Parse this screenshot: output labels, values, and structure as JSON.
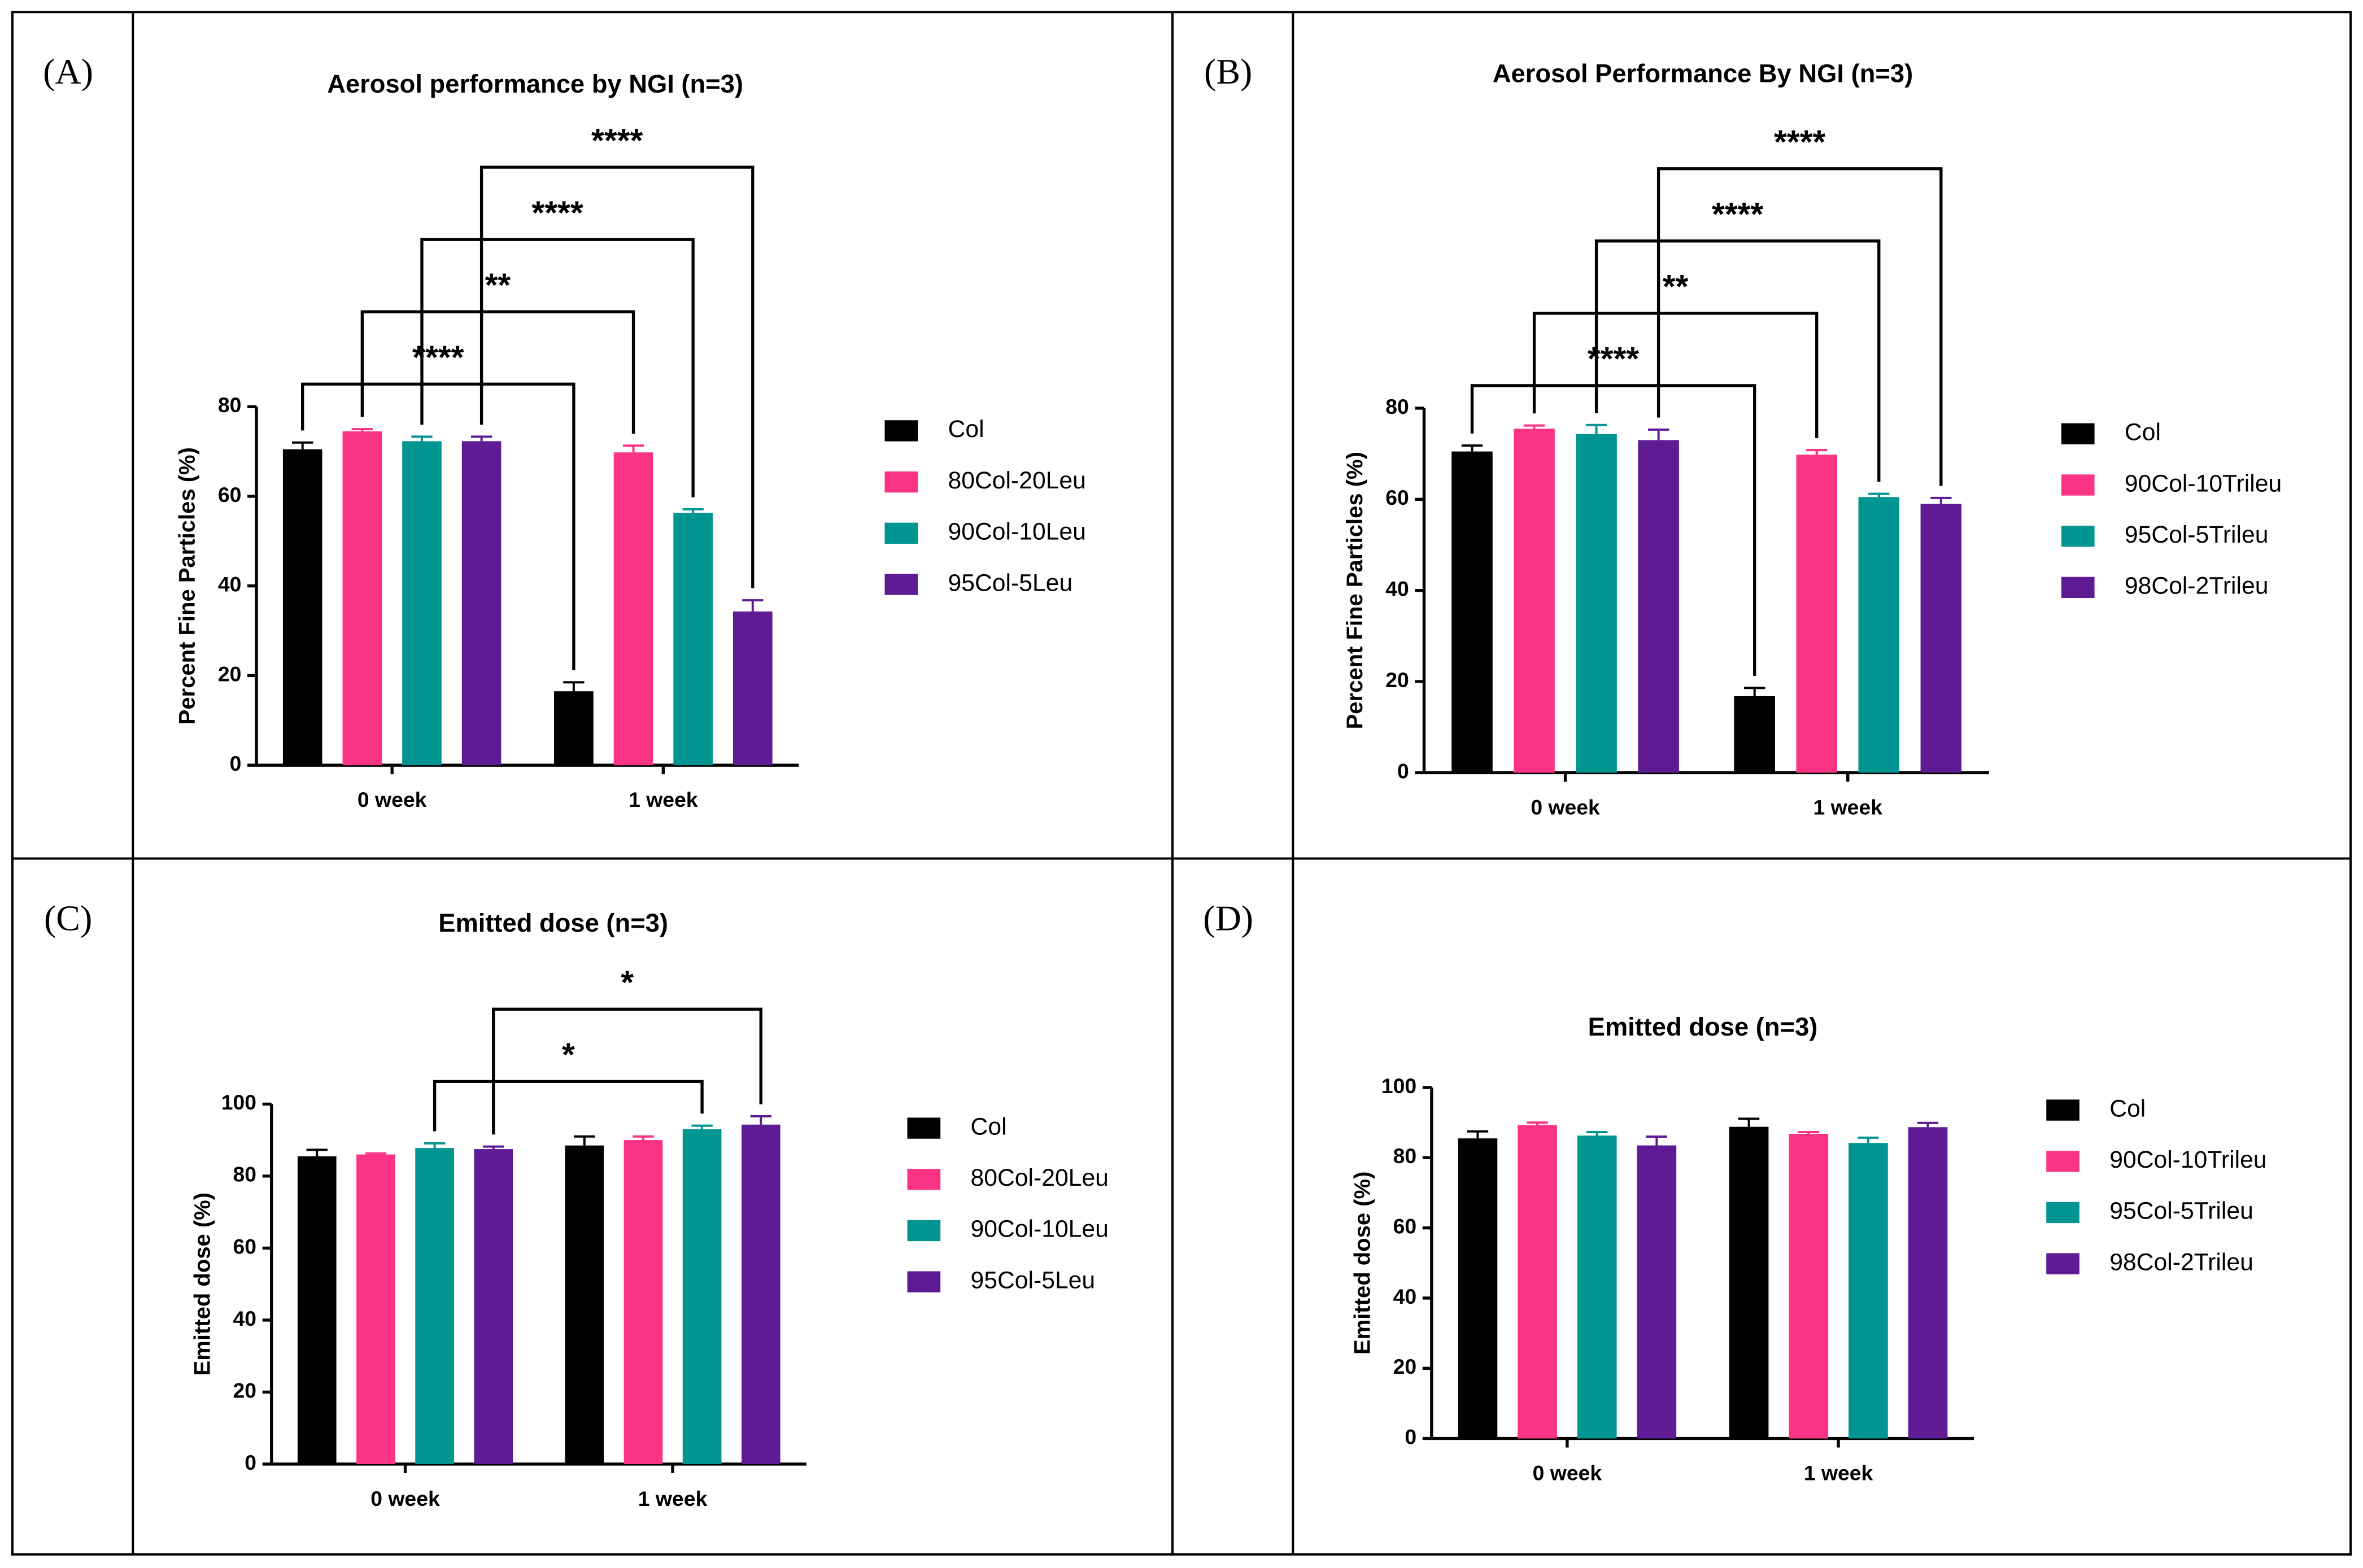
{
  "chart_data": [
    {
      "type": "bar",
      "label": "(A)",
      "title": "Aerosol performance by NGI (n=3)",
      "ylabel": "Percent Fine Particles (%)",
      "categories": [
        "0 week",
        "1 week"
      ],
      "ylim": [
        0,
        80
      ],
      "yticks": [
        0,
        20,
        40,
        60,
        80
      ],
      "series": [
        {
          "name": "Col",
          "color": "#000000",
          "values": [
            70.5,
            16.5
          ],
          "errors": [
            1.5,
            2
          ]
        },
        {
          "name": "80Col-20Leu",
          "color": "#fb3385",
          "values": [
            74.5,
            69.8
          ],
          "errors": [
            0.5,
            1.5
          ]
        },
        {
          "name": "90Col-10Leu",
          "color": "#009591",
          "values": [
            72.3,
            56.3
          ],
          "errors": [
            1,
            0.8
          ]
        },
        {
          "name": "95Col-5Leu",
          "color": "#5f1b93",
          "values": [
            72.3,
            34.3
          ],
          "errors": [
            1,
            2.5
          ]
        }
      ],
      "significance": [
        {
          "series": 0,
          "text": "****"
        },
        {
          "series": 1,
          "text": "**"
        },
        {
          "series": 2,
          "text": "****"
        },
        {
          "series": 3,
          "text": "****"
        }
      ]
    },
    {
      "type": "bar",
      "label": "(B)",
      "title": "Aerosol Performance By NGI (n=3)",
      "ylabel": "Percent Fine Particles (%)",
      "categories": [
        "0 week",
        "1 week"
      ],
      "ylim": [
        0,
        80
      ],
      "yticks": [
        0,
        20,
        40,
        60,
        80
      ],
      "series": [
        {
          "name": "Col",
          "color": "#000000",
          "values": [
            70.5,
            16.8
          ],
          "errors": [
            1.3,
            1.8
          ]
        },
        {
          "name": "90Col-10Trileu",
          "color": "#fb3385",
          "values": [
            75.5,
            69.8
          ],
          "errors": [
            0.7,
            1
          ]
        },
        {
          "name": "95Col-5Trileu",
          "color": "#009591",
          "values": [
            74.3,
            60.5
          ],
          "errors": [
            2,
            0.7
          ]
        },
        {
          "name": "98Col-2Trileu",
          "color": "#5f1b93",
          "values": [
            73,
            59
          ],
          "errors": [
            2.3,
            1.3
          ]
        }
      ],
      "significance": [
        {
          "series": 0,
          "text": "****"
        },
        {
          "series": 1,
          "text": "**"
        },
        {
          "series": 2,
          "text": "****"
        },
        {
          "series": 3,
          "text": "****"
        }
      ]
    },
    {
      "type": "bar",
      "label": "(C)",
      "title": "Emitted dose (n=3)",
      "ylabel": "Emitted dose (%)",
      "categories": [
        "0 week",
        "1 week"
      ],
      "ylim": [
        0,
        100
      ],
      "yticks": [
        0,
        20,
        40,
        60,
        80,
        100
      ],
      "series": [
        {
          "name": "Col",
          "color": "#000000",
          "values": [
            85.5,
            88.5
          ],
          "errors": [
            1.8,
            2.5
          ]
        },
        {
          "name": "80Col-20Leu",
          "color": "#fb3385",
          "values": [
            86,
            90
          ],
          "errors": [
            0.3,
            1
          ]
        },
        {
          "name": "90Col-10Leu",
          "color": "#009591",
          "values": [
            87.8,
            93
          ],
          "errors": [
            1.3,
            1
          ]
        },
        {
          "name": "95Col-5Leu",
          "color": "#5f1b93",
          "values": [
            87.5,
            94.3
          ],
          "errors": [
            0.7,
            2.3
          ]
        }
      ],
      "significance": [
        {
          "series": 2,
          "text": "*"
        },
        {
          "series": 3,
          "text": "*"
        }
      ]
    },
    {
      "type": "bar",
      "label": "(D)",
      "title": "Emitted dose (n=3)",
      "ylabel": "Emitted dose (%)",
      "categories": [
        "0 week",
        "1 week"
      ],
      "ylim": [
        0,
        100
      ],
      "yticks": [
        0,
        20,
        40,
        60,
        80,
        100
      ],
      "series": [
        {
          "name": "Col",
          "color": "#000000",
          "values": [
            85.5,
            88.8
          ],
          "errors": [
            2,
            2.3
          ]
        },
        {
          "name": "90Col-10Trileu",
          "color": "#fb3385",
          "values": [
            89.3,
            86.8
          ],
          "errors": [
            0.7,
            0.5
          ]
        },
        {
          "name": "95Col-5Trileu",
          "color": "#009591",
          "values": [
            86.3,
            84.2
          ],
          "errors": [
            1,
            1.5
          ]
        },
        {
          "name": "98Col-2Trileu",
          "color": "#5f1b93",
          "values": [
            83.5,
            88.7
          ],
          "errors": [
            2.5,
            1.2
          ]
        }
      ]
    }
  ]
}
